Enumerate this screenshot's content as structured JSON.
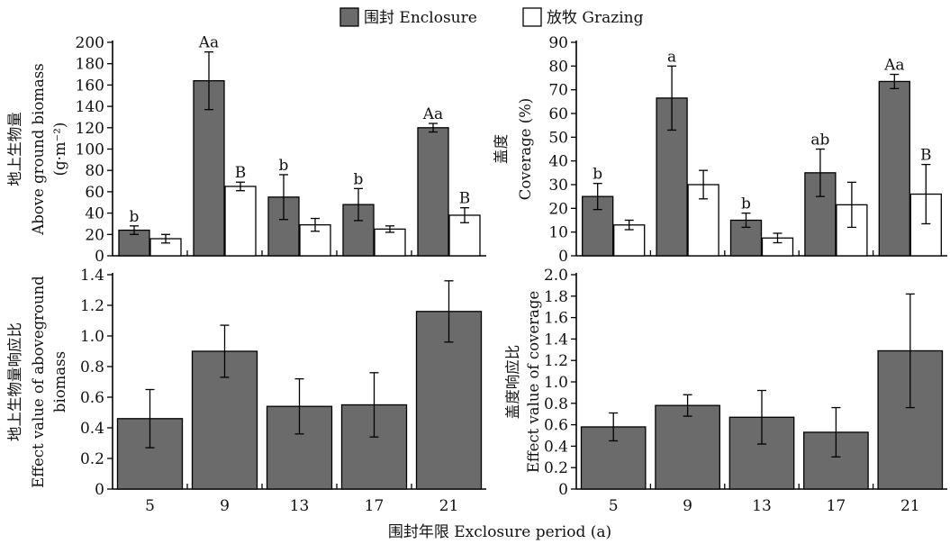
{
  "legend": {
    "enclosure": "围封 Enclosure",
    "grazing": "放牧 Grazing"
  },
  "x_axis_title": "围封年限 Exclosure period (a)",
  "colors": {
    "enclosure": "#6b6b6b",
    "grazing": "#ffffff",
    "axis": "#000000"
  },
  "chart_data": [
    {
      "type": "bar",
      "ylabel_cn": "地上生物量",
      "ylabel_en": "Above ground biomass",
      "ylabel_unit": "(g·m⁻²)",
      "ylim": [
        0,
        200
      ],
      "ytick_step": 20,
      "yticks": [
        "0",
        "20",
        "40",
        "60",
        "80",
        "100",
        "120",
        "140",
        "160",
        "180",
        "200"
      ],
      "categories": [
        "5",
        "9",
        "13",
        "17",
        "21"
      ],
      "series": [
        {
          "name": "围封 Enclosure",
          "values": [
            24,
            164,
            55,
            48,
            120
          ],
          "errors": [
            4,
            27,
            21,
            15,
            4
          ],
          "labels": [
            "b",
            "Aa",
            "b",
            "b",
            "Aa"
          ]
        },
        {
          "name": "放牧 Grazing",
          "values": [
            16,
            65,
            29,
            25,
            38
          ],
          "errors": [
            4,
            4,
            6,
            3,
            7
          ],
          "labels": [
            "",
            "B",
            "",
            "",
            "B"
          ]
        }
      ]
    },
    {
      "type": "bar",
      "ylabel_cn": "盖度",
      "ylabel_en": "Coverage (%)",
      "ylim": [
        0,
        90
      ],
      "ytick_step": 10,
      "yticks": [
        "0",
        "10",
        "20",
        "30",
        "40",
        "50",
        "60",
        "70",
        "80",
        "90"
      ],
      "categories": [
        "5",
        "9",
        "13",
        "17",
        "21"
      ],
      "series": [
        {
          "name": "围封 Enclosure",
          "values": [
            25,
            66.5,
            15,
            35,
            73.5
          ],
          "errors": [
            5.5,
            13.5,
            3,
            10,
            3
          ],
          "labels": [
            "b",
            "a",
            "b",
            "ab",
            "Aa"
          ]
        },
        {
          "name": "放牧 Grazing",
          "values": [
            13,
            30,
            7.5,
            21.5,
            26
          ],
          "errors": [
            2,
            6,
            2,
            9.5,
            12.5
          ],
          "labels": [
            "",
            "",
            "",
            "",
            "B"
          ]
        }
      ]
    },
    {
      "type": "bar",
      "ylabel_cn": "地上生物量响应比",
      "ylabel_en": "Effect value of aboveground",
      "ylabel_en2": "biomass",
      "ylim": [
        0,
        1.4
      ],
      "ytick_step": 0.2,
      "yticks": [
        "0",
        "0.2",
        "0.4",
        "0.6",
        "0.8",
        "1.0",
        "1.2",
        "1.4"
      ],
      "categories": [
        "5",
        "9",
        "13",
        "17",
        "21"
      ],
      "series": [
        {
          "name": "",
          "values": [
            0.46,
            0.9,
            0.54,
            0.55,
            1.16
          ],
          "errors": [
            0.19,
            0.17,
            0.18,
            0.21,
            0.2
          ]
        }
      ]
    },
    {
      "type": "bar",
      "ylabel_cn": "盖度响应比",
      "ylabel_en": "Effect value of coverage",
      "ylim": [
        0,
        2.0
      ],
      "ytick_step": 0.2,
      "yticks": [
        "0",
        "0.2",
        "0.4",
        "0.6",
        "0.8",
        "1.0",
        "1.2",
        "1.4",
        "1.6",
        "1.8",
        "2.0"
      ],
      "categories": [
        "5",
        "9",
        "13",
        "17",
        "21"
      ],
      "series": [
        {
          "name": "",
          "values": [
            0.58,
            0.78,
            0.67,
            0.53,
            1.29
          ],
          "errors": [
            0.13,
            0.1,
            0.25,
            0.23,
            0.53
          ]
        }
      ]
    }
  ]
}
